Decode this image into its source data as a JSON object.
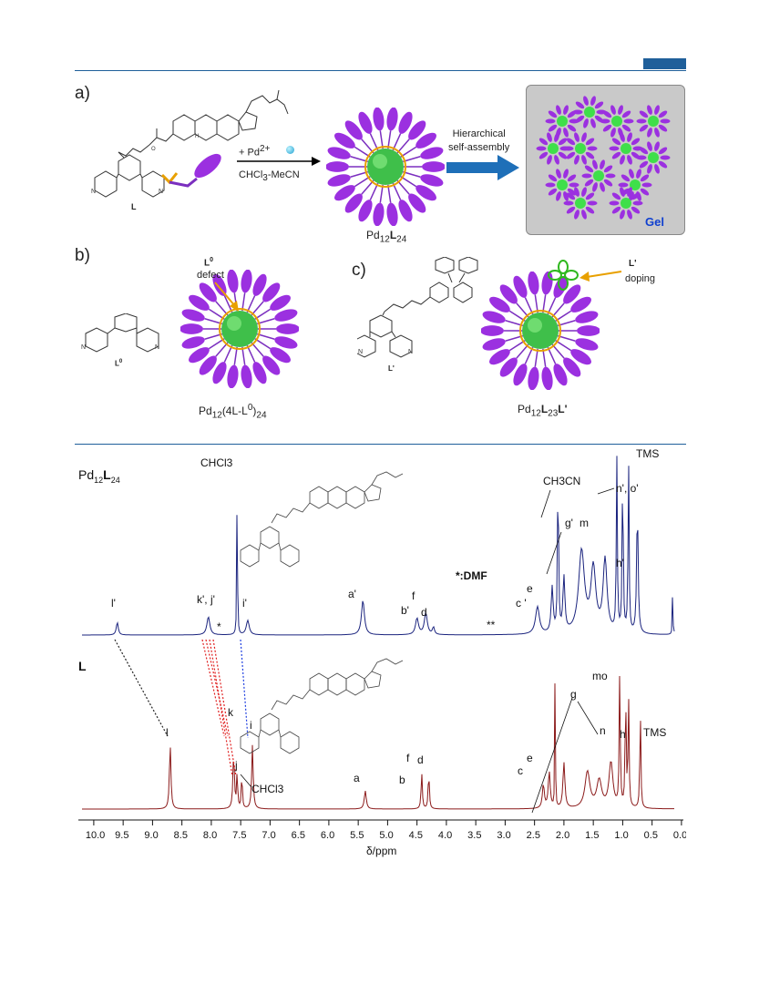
{
  "header": {
    "accent": "#1f5f9a"
  },
  "panels": {
    "a": {
      "label": "a)",
      "ligand_label": "L",
      "reagent_top": "+ Pd",
      "reagent_sup": "2+",
      "solvent_pre": "CHCl",
      "solvent_sub": "3",
      "solvent_post": "-MeCN",
      "arrow_text_1": "Hierarchical",
      "arrow_text_2": "self-assembly",
      "cage_formula_pre": "Pd",
      "cage_formula_sub1": "12",
      "cage_formula_mid": "L",
      "cage_formula_sub2": "24",
      "gel_label": "Gel"
    },
    "b": {
      "label": "b)",
      "ligand_label": "L",
      "ligand_sup": "0",
      "defect_title": "L",
      "defect_title_sup": "0",
      "defect_word": "defect",
      "formula_pre": "Pd",
      "formula_sub1": "12",
      "formula_mid": "(4L-L",
      "formula_sup": "0",
      "formula_post": ")",
      "formula_sub2": "24"
    },
    "c": {
      "label": "c)",
      "ligand_label": "L'",
      "dope_title": "L'",
      "dope_word": "doping",
      "formula_pre": "Pd",
      "formula_sub1": "12",
      "formula_mid": "L",
      "formula_sub2": "23",
      "formula_post": "L'"
    }
  },
  "nmr": {
    "top_title_pre": "Pd",
    "top_title_sub1": "12",
    "top_title_mid": "L",
    "top_title_sub2": "24",
    "bottom_title": "L",
    "dmf_note": "*:DMF",
    "xlabel": "δ/ppm",
    "ticks": [
      "10.0",
      "9.5",
      "9.0",
      "8.5",
      "8.0",
      "7.5",
      "7.0",
      "6.5",
      "6.0",
      "5.5",
      "5.0",
      "4.5",
      "4.0",
      "3.5",
      "3.0",
      "2.5",
      "2.0",
      "1.5",
      "1.0",
      "0.5",
      "0.0",
      "-0"
    ],
    "top_labels": {
      "chcl3": "CHCl3",
      "tms": "TMS",
      "ch3cn": "CH3CN",
      "l": "l'",
      "kj": "k', j'",
      "i": "i'",
      "a": "a'",
      "b": "b'",
      "f": "f",
      "d": "d",
      "c": "c '",
      "e": "e",
      "g": "g'",
      "m": "m",
      "no": "n', o'",
      "h": "h'",
      "star1": "*",
      "star2": "**"
    },
    "bottom_labels": {
      "l": "l",
      "k": "k",
      "j": "j",
      "i": "i",
      "chcl3": "CHCl3",
      "a": "a",
      "b": "b",
      "f": "f",
      "d": "d",
      "c": "c",
      "e": "e",
      "g": "g",
      "mo": "mo",
      "n": "n",
      "h": "h",
      "tms": "TMS"
    },
    "colors": {
      "top": "#1a237e",
      "bottom": "#8b1a1a",
      "link_black": "#222222",
      "link_red": "#e02020",
      "link_blue": "#2040e0"
    }
  }
}
